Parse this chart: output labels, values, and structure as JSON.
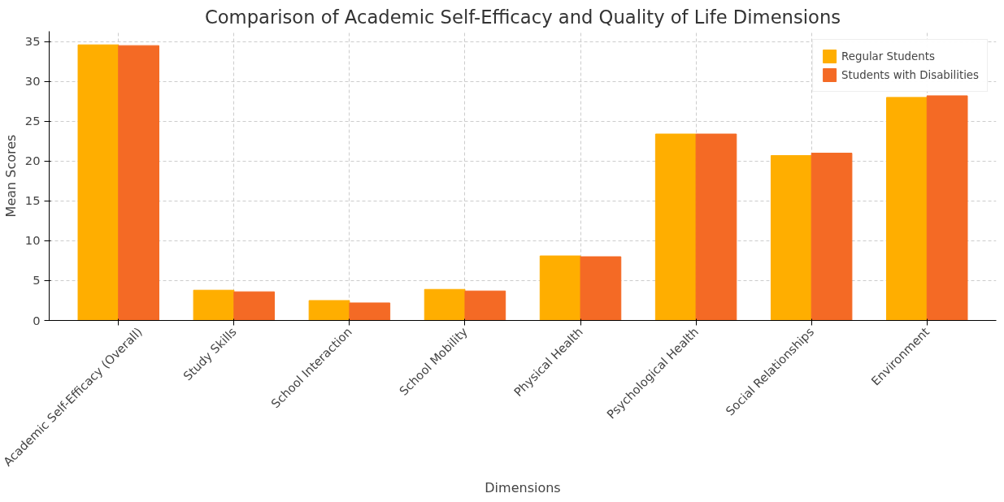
{
  "chart_data": {
    "type": "bar",
    "title": "Comparison of Academic Self-Efficacy and Quality of Life Dimensions",
    "xlabel": "Dimensions",
    "ylabel": "Mean Scores",
    "categories": [
      "Academic Self-Efficacy (Overall)",
      "Study Skills",
      "School Interaction",
      "School Mobility",
      "Physical Health",
      "Psychological Health",
      "Social Relationships",
      "Environment"
    ],
    "series": [
      {
        "name": "Regular Students",
        "color": "#ffae00",
        "values": [
          34.6,
          3.8,
          2.5,
          3.9,
          8.1,
          23.4,
          20.7,
          28.0
        ]
      },
      {
        "name": "Students with Disabilities",
        "color": "#f46a25",
        "values": [
          34.5,
          3.6,
          2.2,
          3.7,
          8.0,
          23.4,
          21.0,
          28.2
        ]
      }
    ],
    "ylim": [
      0,
      36.3
    ],
    "yticks": [
      0,
      5,
      10,
      15,
      20,
      25,
      30,
      35
    ],
    "grid": true,
    "legend": "top right"
  }
}
